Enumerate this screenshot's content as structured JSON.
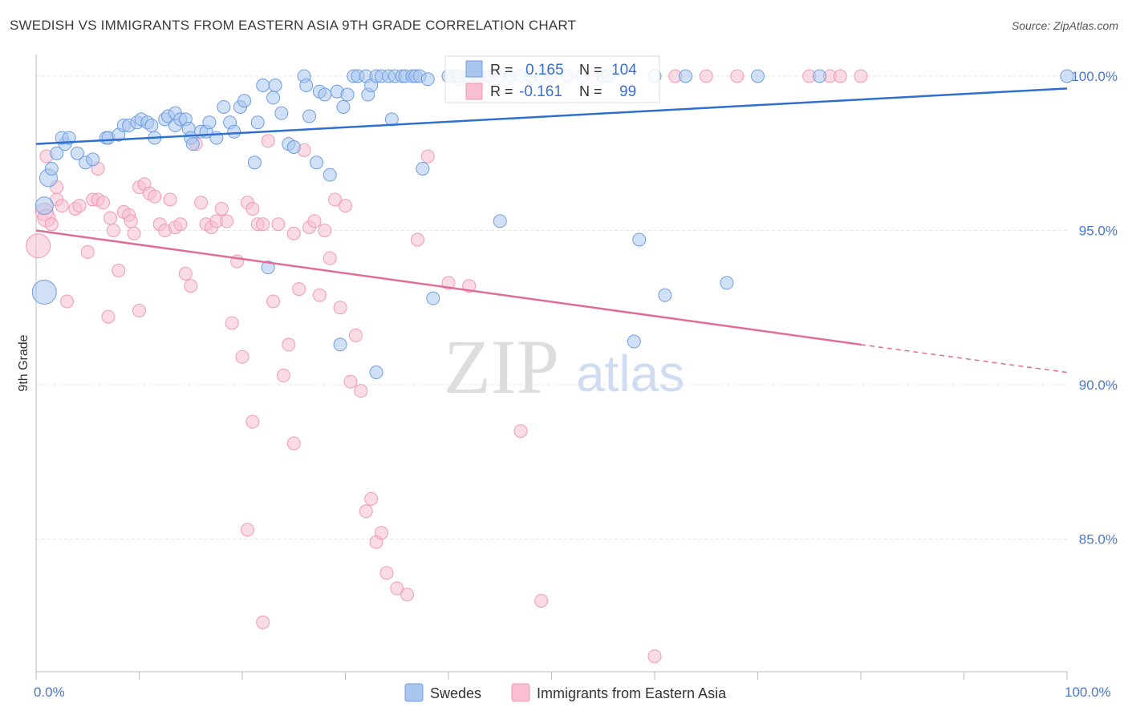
{
  "header": {
    "title": "SWEDISH VS IMMIGRANTS FROM EASTERN ASIA 9TH GRADE CORRELATION CHART",
    "source": "Source: ZipAtlas.com"
  },
  "watermark": {
    "zip": "ZIP",
    "atlas": "atlas"
  },
  "colors": {
    "swedes_fill": "#a9c6ef",
    "swedes_stroke": "#6f9de0",
    "swedes_line": "#2f6fd0",
    "asia_fill": "#f7bfd0",
    "asia_stroke": "#ef9ab6",
    "asia_line": "#e06c98",
    "grid": "#e6e6e6",
    "tick_text": "#4a76c6"
  },
  "stats": {
    "swedes": {
      "r_label": "R =",
      "r_value": "0.165",
      "n_label": "N =",
      "n_value": "104"
    },
    "asia": {
      "r_label": "R =",
      "r_value": "-0.161",
      "n_label": "N =",
      "n_value": "99"
    }
  },
  "legend": {
    "swedes": "Swedes",
    "asia": "Immigrants from Eastern Asia"
  },
  "chart_data": {
    "type": "scatter",
    "title": "SWEDISH VS IMMIGRANTS FROM EASTERN ASIA 9TH GRADE CORRELATION CHART",
    "xlabel": "",
    "ylabel": "9th Grade",
    "xlim": [
      0,
      100
    ],
    "ylim": [
      80.7,
      100.7
    ],
    "x_tick_labels": [
      "0.0%",
      "100.0%"
    ],
    "y_ticks": [
      85,
      90,
      95,
      100
    ],
    "y_tick_labels": [
      "85.0%",
      "90.0%",
      "95.0%",
      "100.0%"
    ],
    "grid": true,
    "legend_position": "bottom",
    "series": [
      {
        "name": "Swedes",
        "trend": {
          "x": [
            0,
            100
          ],
          "y": [
            97.8,
            99.6
          ]
        },
        "points": [
          [
            0.8,
            95.8,
            2
          ],
          [
            0.8,
            93.0,
            3
          ],
          [
            1.2,
            96.7,
            2
          ],
          [
            1.5,
            97.0,
            1
          ],
          [
            2.0,
            97.5,
            1
          ],
          [
            2.8,
            97.8,
            1
          ],
          [
            2.5,
            98.0,
            1
          ],
          [
            3.2,
            98.0,
            1
          ],
          [
            4.0,
            97.5,
            1
          ],
          [
            4.8,
            97.2,
            1
          ],
          [
            5.5,
            97.3,
            1
          ],
          [
            6.8,
            98.0,
            1
          ],
          [
            7.0,
            98.0,
            1
          ],
          [
            8.0,
            98.1,
            1
          ],
          [
            8.5,
            98.4,
            1
          ],
          [
            9.0,
            98.4,
            1
          ],
          [
            9.8,
            98.5,
            1
          ],
          [
            10.2,
            98.6,
            1
          ],
          [
            10.8,
            98.5,
            1
          ],
          [
            11.2,
            98.4,
            1
          ],
          [
            11.5,
            98.0,
            1
          ],
          [
            12.5,
            98.6,
            1
          ],
          [
            12.8,
            98.7,
            1
          ],
          [
            13.5,
            98.8,
            1
          ],
          [
            13.5,
            98.4,
            1
          ],
          [
            14.0,
            98.6,
            1
          ],
          [
            14.5,
            98.6,
            1
          ],
          [
            14.8,
            98.3,
            1
          ],
          [
            15.0,
            98.0,
            1
          ],
          [
            15.2,
            97.8,
            1
          ],
          [
            16.0,
            98.2,
            1
          ],
          [
            16.5,
            98.2,
            1
          ],
          [
            16.8,
            98.5,
            1
          ],
          [
            17.5,
            98.0,
            1
          ],
          [
            18.2,
            99.0,
            1
          ],
          [
            18.8,
            98.5,
            1
          ],
          [
            19.2,
            98.2,
            1
          ],
          [
            19.8,
            99.0,
            1
          ],
          [
            20.2,
            99.2,
            1
          ],
          [
            21.5,
            98.5,
            1
          ],
          [
            21.2,
            97.2,
            1
          ],
          [
            22.0,
            99.7,
            1
          ],
          [
            23.0,
            99.3,
            1
          ],
          [
            23.2,
            99.7,
            1
          ],
          [
            23.8,
            98.8,
            1
          ],
          [
            24.5,
            97.8,
            1
          ],
          [
            25.0,
            97.7,
            1
          ],
          [
            26.0,
            100.0,
            1
          ],
          [
            26.2,
            99.7,
            1
          ],
          [
            26.5,
            98.7,
            1
          ],
          [
            27.2,
            97.2,
            1
          ],
          [
            27.5,
            99.5,
            1
          ],
          [
            28.0,
            99.4,
            1
          ],
          [
            28.5,
            96.8,
            1
          ],
          [
            29.2,
            99.5,
            1
          ],
          [
            29.8,
            99.0,
            1
          ],
          [
            30.2,
            99.4,
            1
          ],
          [
            30.8,
            100.0,
            1
          ],
          [
            31.2,
            100.0,
            1
          ],
          [
            32.0,
            100.0,
            1
          ],
          [
            32.2,
            99.4,
            1
          ],
          [
            32.5,
            99.7,
            1
          ],
          [
            33.0,
            100.0,
            1
          ],
          [
            33.5,
            100.0,
            1
          ],
          [
            34.2,
            100.0,
            1
          ],
          [
            34.5,
            98.6,
            1
          ],
          [
            34.8,
            100.0,
            1
          ],
          [
            35.5,
            100.0,
            1
          ],
          [
            35.8,
            100.0,
            1
          ],
          [
            36.5,
            100.0,
            1
          ],
          [
            36.8,
            100.0,
            1
          ],
          [
            37.2,
            100.0,
            1
          ],
          [
            37.5,
            97.0,
            1
          ],
          [
            38.0,
            99.9,
            1
          ],
          [
            40.0,
            100.0,
            1
          ],
          [
            40.5,
            100.0,
            1
          ],
          [
            41.0,
            100.0,
            1
          ],
          [
            42.0,
            100.0,
            1
          ],
          [
            43.0,
            100.0,
            1
          ],
          [
            44.0,
            100.0,
            1
          ],
          [
            45.0,
            100.0,
            1
          ],
          [
            46.0,
            100.0,
            1
          ],
          [
            47.0,
            100.0,
            1
          ],
          [
            48.0,
            100.0,
            1
          ],
          [
            49.0,
            100.0,
            1
          ],
          [
            50.0,
            100.0,
            1
          ],
          [
            51.5,
            100.0,
            1
          ],
          [
            53.0,
            100.0,
            1
          ],
          [
            55.0,
            100.0,
            1
          ],
          [
            60.0,
            100.0,
            1
          ],
          [
            63.0,
            100.0,
            1
          ],
          [
            70.0,
            100.0,
            1
          ],
          [
            76.0,
            100.0,
            1
          ],
          [
            100.0,
            100.0,
            1
          ],
          [
            22.5,
            93.8,
            1
          ],
          [
            29.5,
            91.3,
            1
          ],
          [
            33.0,
            90.4,
            1
          ],
          [
            38.5,
            92.8,
            1
          ],
          [
            45.0,
            95.3,
            1
          ],
          [
            58.0,
            91.4,
            1
          ],
          [
            58.5,
            94.7,
            1
          ],
          [
            61.0,
            92.9,
            1
          ],
          [
            67.0,
            93.3,
            1
          ],
          [
            55.5,
            100.0,
            1
          ]
        ]
      },
      {
        "name": "Immigrants from Eastern Asia",
        "trend": {
          "x": [
            0,
            80
          ],
          "y": [
            95.0,
            91.3
          ]
        },
        "trend_dashed": {
          "x": [
            80,
            100
          ],
          "y": [
            91.3,
            90.4
          ]
        },
        "points": [
          [
            0.2,
            94.5,
            3
          ],
          [
            0.8,
            95.6,
            2
          ],
          [
            1.0,
            95.4,
            2
          ],
          [
            1.5,
            95.2,
            1
          ],
          [
            2.0,
            96.0,
            1
          ],
          [
            2.5,
            95.8,
            1
          ],
          [
            3.0,
            92.7,
            1
          ],
          [
            3.8,
            95.7,
            1
          ],
          [
            4.2,
            95.8,
            1
          ],
          [
            5.0,
            94.3,
            1
          ],
          [
            5.5,
            96.0,
            1
          ],
          [
            6.0,
            96.0,
            1
          ],
          [
            6.5,
            95.9,
            1
          ],
          [
            7.2,
            95.4,
            1
          ],
          [
            7.5,
            95.0,
            1
          ],
          [
            8.0,
            93.7,
            1
          ],
          [
            8.5,
            95.6,
            1
          ],
          [
            9.0,
            95.5,
            1
          ],
          [
            9.2,
            95.3,
            1
          ],
          [
            9.5,
            94.9,
            1
          ],
          [
            10.0,
            96.4,
            1
          ],
          [
            10.5,
            96.5,
            1
          ],
          [
            11.0,
            96.2,
            1
          ],
          [
            11.5,
            96.1,
            1
          ],
          [
            12.0,
            95.2,
            1
          ],
          [
            12.5,
            95.0,
            1
          ],
          [
            13.0,
            96.0,
            1
          ],
          [
            13.5,
            95.1,
            1
          ],
          [
            14.0,
            95.2,
            1
          ],
          [
            14.5,
            93.6,
            1
          ],
          [
            15.0,
            93.2,
            1
          ],
          [
            15.5,
            97.8,
            1
          ],
          [
            16.0,
            95.9,
            1
          ],
          [
            16.5,
            95.2,
            1
          ],
          [
            17.0,
            95.1,
            1
          ],
          [
            17.5,
            95.3,
            1
          ],
          [
            18.0,
            95.7,
            1
          ],
          [
            18.5,
            95.3,
            1
          ],
          [
            19.0,
            92.0,
            1
          ],
          [
            19.5,
            94.0,
            1
          ],
          [
            20.0,
            90.9,
            1
          ],
          [
            20.5,
            95.9,
            1
          ],
          [
            21.0,
            95.7,
            1
          ],
          [
            21.5,
            95.2,
            1
          ],
          [
            22.0,
            95.2,
            1
          ],
          [
            22.5,
            97.9,
            1
          ],
          [
            23.0,
            92.7,
            1
          ],
          [
            23.5,
            95.2,
            1
          ],
          [
            24.0,
            90.3,
            1
          ],
          [
            24.5,
            91.3,
            1
          ],
          [
            25.0,
            94.9,
            1
          ],
          [
            25.5,
            93.1,
            1
          ],
          [
            26.0,
            97.6,
            1
          ],
          [
            26.5,
            95.1,
            1
          ],
          [
            27.0,
            95.3,
            1
          ],
          [
            27.5,
            92.9,
            1
          ],
          [
            28.0,
            95.0,
            1
          ],
          [
            28.5,
            94.1,
            1
          ],
          [
            29.0,
            96.0,
            1
          ],
          [
            29.5,
            92.5,
            1
          ],
          [
            30.0,
            95.8,
            1
          ],
          [
            30.5,
            90.1,
            1
          ],
          [
            31.0,
            91.6,
            1
          ],
          [
            31.5,
            89.8,
            1
          ],
          [
            32.0,
            85.9,
            1
          ],
          [
            32.5,
            86.3,
            1
          ],
          [
            33.0,
            84.9,
            1
          ],
          [
            33.5,
            85.2,
            1
          ],
          [
            34.0,
            83.9,
            1
          ],
          [
            35.0,
            83.4,
            1
          ],
          [
            36.0,
            83.2,
            1
          ],
          [
            37.0,
            94.7,
            1
          ],
          [
            38.0,
            97.4,
            1
          ],
          [
            40.0,
            93.3,
            1
          ],
          [
            41.0,
            99.9,
            1
          ],
          [
            42.0,
            93.2,
            1
          ],
          [
            43.0,
            99.9,
            1
          ],
          [
            44.0,
            100.0,
            1
          ],
          [
            47.0,
            88.5,
            1
          ],
          [
            49.0,
            83.0,
            1
          ],
          [
            50.0,
            100.0,
            1
          ],
          [
            54.0,
            100.0,
            1
          ],
          [
            60.0,
            81.2,
            1
          ],
          [
            62.0,
            100.0,
            1
          ],
          [
            65.0,
            100.0,
            1
          ],
          [
            68.0,
            100.0,
            1
          ],
          [
            75.0,
            100.0,
            1
          ],
          [
            77.0,
            100.0,
            1
          ],
          [
            78.0,
            100.0,
            1
          ],
          [
            80.0,
            100.0,
            1
          ],
          [
            20.5,
            85.3,
            1
          ],
          [
            21.0,
            88.8,
            1
          ],
          [
            22.0,
            82.3,
            1
          ],
          [
            25.0,
            88.1,
            1
          ],
          [
            7.0,
            92.2,
            1
          ],
          [
            10.0,
            92.4,
            1
          ],
          [
            1.0,
            97.4,
            1
          ],
          [
            2.0,
            96.4,
            1
          ],
          [
            6.0,
            97.0,
            1
          ]
        ]
      }
    ]
  }
}
